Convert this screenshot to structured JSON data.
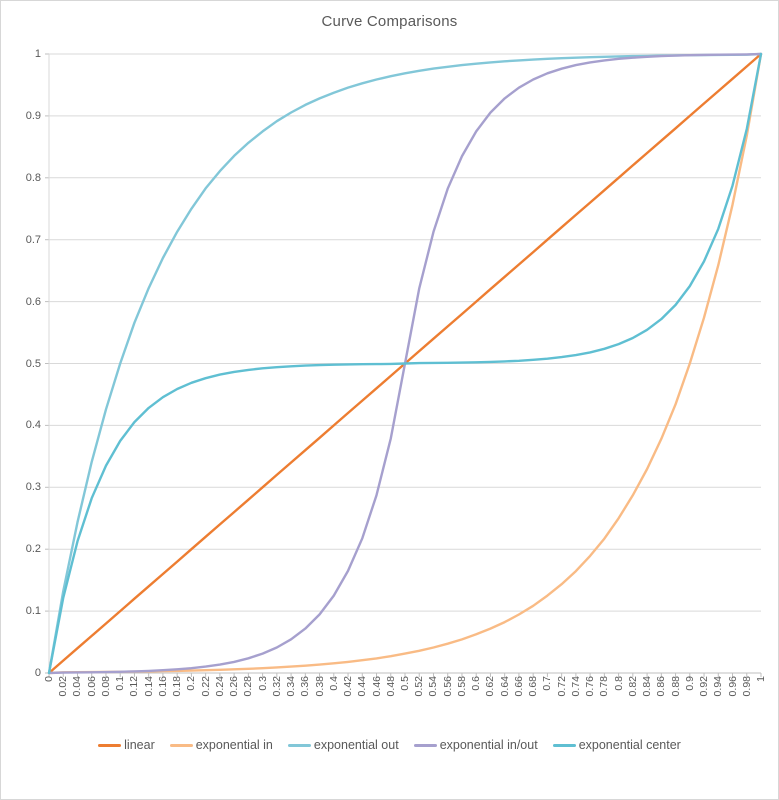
{
  "title": "Curve Comparisons",
  "colors": {
    "text": "#595959",
    "gridline": "#d9d9d9",
    "axis_line": "#bfbfbf",
    "tick": "#bfbfbf",
    "background": "#ffffff",
    "border": "#d7d7d7"
  },
  "chart_data": {
    "type": "line",
    "title": "Curve Comparisons",
    "xlabel": "",
    "ylabel": "",
    "xlim": [
      0,
      1
    ],
    "ylim": [
      0,
      1
    ],
    "grid": "horizontal",
    "legend_position": "bottom",
    "x_ticks": [
      "0",
      "0.02",
      "0.04",
      "0.06",
      "0.08",
      "0.1",
      "0.12",
      "0.14",
      "0.16",
      "0.18",
      "0.2",
      "0.22",
      "0.24",
      "0.26",
      "0.28",
      "0.3",
      "0.32",
      "0.34",
      "0.36",
      "0.38",
      "0.4",
      "0.42",
      "0.44",
      "0.46",
      "0.48",
      "0.5",
      "0.52",
      "0.54",
      "0.56",
      "0.58",
      "0.6",
      "0.62",
      "0.64",
      "0.66",
      "0.68",
      "0.7",
      "0.72",
      "0.74",
      "0.76",
      "0.78",
      "0.8",
      "0.82",
      "0.84",
      "0.86",
      "0.88",
      "0.9",
      "0.92",
      "0.94",
      "0.96",
      "0.98",
      "1"
    ],
    "y_ticks": [
      "0",
      "0.1",
      "0.2",
      "0.3",
      "0.4",
      "0.5",
      "0.6",
      "0.7",
      "0.8",
      "0.9",
      "1"
    ],
    "x": [
      0,
      0.02,
      0.04,
      0.06,
      0.08,
      0.1,
      0.12,
      0.14,
      0.16,
      0.18,
      0.2,
      0.22,
      0.24,
      0.26,
      0.28,
      0.3,
      0.32,
      0.34,
      0.36,
      0.38,
      0.4,
      0.42,
      0.44,
      0.46,
      0.48,
      0.5,
      0.52,
      0.54,
      0.56,
      0.58,
      0.6,
      0.62,
      0.64,
      0.66,
      0.68,
      0.7,
      0.72,
      0.74,
      0.76,
      0.78,
      0.8,
      0.82,
      0.84,
      0.86,
      0.88,
      0.9,
      0.92,
      0.94,
      0.96,
      0.98,
      1
    ],
    "series": [
      {
        "name": "linear",
        "color": "#ED7D31",
        "values": [
          0,
          0.02,
          0.04,
          0.06,
          0.08,
          0.1,
          0.12,
          0.14,
          0.16,
          0.18,
          0.2,
          0.22,
          0.24,
          0.26,
          0.28,
          0.3,
          0.32,
          0.34,
          0.36,
          0.38,
          0.4,
          0.42,
          0.44,
          0.46,
          0.48,
          0.5,
          0.52,
          0.54,
          0.56,
          0.58,
          0.6,
          0.62,
          0.64,
          0.66,
          0.68,
          0.7,
          0.72,
          0.74,
          0.76,
          0.78,
          0.8,
          0.82,
          0.84,
          0.86,
          0.88,
          0.9,
          0.92,
          0.94,
          0.96,
          0.98,
          1
        ]
      },
      {
        "name": "exponential in",
        "color": "#F9BB85",
        "values": [
          0,
          0.0011,
          0.0013,
          0.0015,
          0.0017,
          0.002,
          0.0022,
          0.0026,
          0.003,
          0.0034,
          0.0039,
          0.0045,
          0.0052,
          0.0059,
          0.0068,
          0.0078,
          0.009,
          0.0103,
          0.0118,
          0.0136,
          0.0156,
          0.0179,
          0.0206,
          0.0236,
          0.0272,
          0.0313,
          0.0359,
          0.0412,
          0.0473,
          0.0543,
          0.0625,
          0.0717,
          0.0823,
          0.0945,
          0.1085,
          0.125,
          0.1435,
          0.1647,
          0.1891,
          0.2171,
          0.25,
          0.287,
          0.3295,
          0.3782,
          0.4342,
          0.5,
          0.574,
          0.6589,
          0.7564,
          0.8683,
          1
        ]
      },
      {
        "name": "exponential out",
        "color": "#82C7D8",
        "values": [
          0,
          0.1317,
          0.2436,
          0.3411,
          0.426,
          0.5,
          0.5658,
          0.6218,
          0.6705,
          0.713,
          0.75,
          0.7829,
          0.8109,
          0.8353,
          0.8565,
          0.875,
          0.8915,
          0.9055,
          0.9177,
          0.9283,
          0.9375,
          0.9457,
          0.9527,
          0.9588,
          0.9641,
          0.9688,
          0.9728,
          0.9764,
          0.9794,
          0.9821,
          0.9844,
          0.9864,
          0.9882,
          0.9897,
          0.991,
          0.9922,
          0.9932,
          0.9941,
          0.9948,
          0.9955,
          0.9961,
          0.9966,
          0.997,
          0.9974,
          0.9978,
          0.998,
          0.9983,
          0.9985,
          0.9987,
          0.9989,
          1
        ]
      },
      {
        "name": "exponential in/out",
        "color": "#A6A0CE",
        "values": [
          0,
          0.0006,
          0.0009,
          0.0011,
          0.0015,
          0.002,
          0.0026,
          0.0034,
          0.0045,
          0.0059,
          0.0078,
          0.0103,
          0.0136,
          0.0179,
          0.0237,
          0.0313,
          0.0412,
          0.0544,
          0.0718,
          0.0947,
          0.125,
          0.1649,
          0.2176,
          0.2872,
          0.379,
          0.5,
          0.621,
          0.7128,
          0.7824,
          0.8351,
          0.875,
          0.9053,
          0.9282,
          0.9456,
          0.9588,
          0.9688,
          0.9763,
          0.9821,
          0.9864,
          0.9897,
          0.9922,
          0.9941,
          0.9955,
          0.9966,
          0.9974,
          0.998,
          0.9985,
          0.9989,
          0.9991,
          0.9993,
          1
        ]
      },
      {
        "name": "exponential center",
        "color": "#5FBFD2",
        "values": [
          0,
          0.1211,
          0.2128,
          0.2824,
          0.3351,
          0.375,
          0.4053,
          0.4282,
          0.4456,
          0.4588,
          0.4688,
          0.4763,
          0.4821,
          0.4864,
          0.4897,
          0.4922,
          0.4941,
          0.4955,
          0.4966,
          0.4974,
          0.498,
          0.4985,
          0.4989,
          0.4991,
          0.4993,
          0.5,
          0.5006,
          0.5009,
          0.5011,
          0.5015,
          0.502,
          0.5026,
          0.5034,
          0.5044,
          0.5059,
          0.5078,
          0.5103,
          0.5136,
          0.5179,
          0.5237,
          0.5313,
          0.5412,
          0.5544,
          0.5718,
          0.5947,
          0.625,
          0.665,
          0.7176,
          0.7872,
          0.879,
          1
        ]
      }
    ]
  }
}
